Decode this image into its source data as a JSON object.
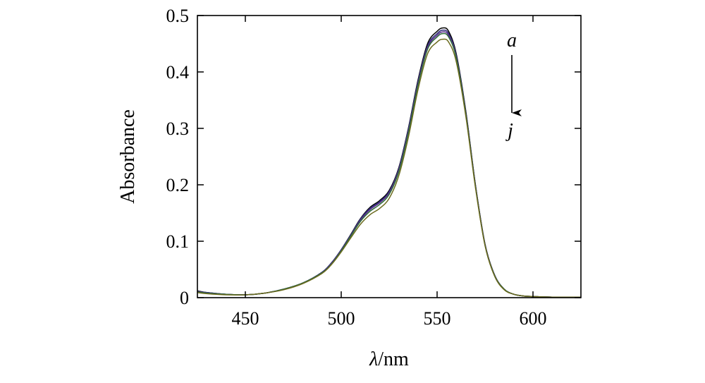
{
  "chart_data": {
    "type": "line",
    "xlabel_symbol": "λ",
    "xlabel_unit": "/nm",
    "ylabel": "Absorbance",
    "xlim": [
      425,
      625
    ],
    "ylim": [
      0,
      0.5
    ],
    "x_ticks": [
      450,
      500,
      550,
      600
    ],
    "y_ticks": [
      0,
      0.1,
      0.2,
      0.3,
      0.4,
      0.5
    ],
    "y_tick_labels": [
      "0",
      "0.1",
      "0.2",
      "0.3",
      "0.4",
      "0.5"
    ],
    "grid": false,
    "legend": "none",
    "annotations": {
      "start": "a",
      "end": "j"
    },
    "x": [
      425,
      430,
      440,
      450,
      460,
      470,
      480,
      490,
      495,
      500,
      505,
      510,
      515,
      520,
      525,
      530,
      535,
      540,
      545,
      550,
      553,
      556,
      560,
      565,
      570,
      575,
      580,
      585,
      590,
      595,
      600,
      610,
      625
    ],
    "series": [
      {
        "color": "#000000",
        "values": [
          0.012,
          0.009,
          0.006,
          0.005,
          0.008,
          0.015,
          0.026,
          0.045,
          0.062,
          0.085,
          0.112,
          0.14,
          0.16,
          0.172,
          0.19,
          0.23,
          0.3,
          0.385,
          0.45,
          0.472,
          0.478,
          0.472,
          0.432,
          0.33,
          0.2,
          0.095,
          0.04,
          0.015,
          0.006,
          0.003,
          0.002,
          0.001,
          0.001
        ]
      },
      {
        "color": "#2f2f7a",
        "values": [
          0.011,
          0.009,
          0.006,
          0.005,
          0.008,
          0.015,
          0.026,
          0.045,
          0.062,
          0.085,
          0.111,
          0.139,
          0.158,
          0.17,
          0.188,
          0.228,
          0.298,
          0.382,
          0.446,
          0.468,
          0.474,
          0.468,
          0.429,
          0.328,
          0.199,
          0.094,
          0.04,
          0.015,
          0.006,
          0.003,
          0.002,
          0.001,
          0.001
        ]
      },
      {
        "color": "#5a2d8c",
        "values": [
          0.011,
          0.008,
          0.006,
          0.005,
          0.008,
          0.015,
          0.026,
          0.044,
          0.061,
          0.084,
          0.11,
          0.137,
          0.156,
          0.168,
          0.186,
          0.226,
          0.295,
          0.379,
          0.443,
          0.465,
          0.471,
          0.465,
          0.427,
          0.326,
          0.198,
          0.094,
          0.039,
          0.015,
          0.006,
          0.003,
          0.002,
          0.001,
          0.001
        ]
      },
      {
        "color": "#2e6b3a",
        "values": [
          0.01,
          0.008,
          0.006,
          0.005,
          0.008,
          0.015,
          0.026,
          0.044,
          0.06,
          0.083,
          0.109,
          0.135,
          0.153,
          0.165,
          0.183,
          0.223,
          0.292,
          0.376,
          0.44,
          0.462,
          0.468,
          0.462,
          0.425,
          0.325,
          0.197,
          0.093,
          0.039,
          0.015,
          0.006,
          0.003,
          0.002,
          0.001,
          0.001
        ]
      },
      {
        "color": "#6b6b1e",
        "values": [
          0.009,
          0.007,
          0.005,
          0.005,
          0.008,
          0.014,
          0.025,
          0.043,
          0.059,
          0.081,
          0.106,
          0.13,
          0.147,
          0.158,
          0.176,
          0.216,
          0.284,
          0.368,
          0.432,
          0.453,
          0.458,
          0.453,
          0.418,
          0.321,
          0.195,
          0.092,
          0.038,
          0.014,
          0.006,
          0.003,
          0.002,
          0.001,
          0.001
        ]
      }
    ]
  }
}
